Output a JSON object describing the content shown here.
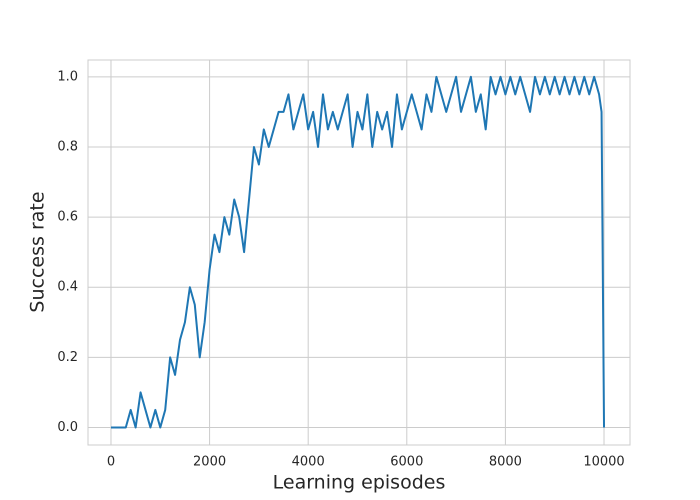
{
  "chart_data": {
    "type": "line",
    "x_label": "Learning episodes",
    "y_label": "Success rate",
    "xlim": [
      -466,
      10527
    ],
    "ylim": [
      -0.05,
      1.048
    ],
    "xticks": [
      0,
      2000,
      4000,
      6000,
      8000,
      10000
    ],
    "yticks": [
      {
        "value": 0,
        "label": "0.0"
      },
      {
        "value": 0.2,
        "label": "0.2"
      },
      {
        "value": 0.4,
        "label": "0.4"
      },
      {
        "value": 0.6,
        "label": "0.6"
      },
      {
        "value": 0.8,
        "label": "0.8"
      },
      {
        "value": 1.0,
        "label": "1.0"
      }
    ],
    "grid": true,
    "x": [
      0,
      100,
      200,
      300,
      400,
      500,
      600,
      700,
      800,
      900,
      1000,
      1100,
      1200,
      1300,
      1400,
      1500,
      1600,
      1700,
      1800,
      1900,
      2000,
      2100,
      2200,
      2300,
      2400,
      2500,
      2600,
      2700,
      2800,
      2900,
      3000,
      3100,
      3200,
      3300,
      3400,
      3500,
      3600,
      3700,
      3800,
      3900,
      4000,
      4100,
      4200,
      4300,
      4400,
      4500,
      4600,
      4700,
      4800,
      4900,
      5000,
      5100,
      5200,
      5300,
      5400,
      5500,
      5600,
      5700,
      5800,
      5900,
      6000,
      6100,
      6200,
      6300,
      6400,
      6500,
      6600,
      6700,
      6800,
      6900,
      7000,
      7100,
      7200,
      7300,
      7400,
      7500,
      7600,
      7700,
      7800,
      7900,
      8000,
      8100,
      8200,
      8300,
      8400,
      8500,
      8600,
      8700,
      8800,
      8900,
      9000,
      9100,
      9200,
      9300,
      9400,
      9500,
      9600,
      9700,
      9800,
      9900,
      9950,
      10000
    ],
    "series": [
      {
        "color": "#1f77b4",
        "values": [
          0,
          0,
          0,
          0,
          0.05,
          0,
          0.1,
          0.05,
          0,
          0.05,
          0,
          0.05,
          0.2,
          0.15,
          0.25,
          0.3,
          0.4,
          0.35,
          0.2,
          0.3,
          0.45,
          0.55,
          0.5,
          0.6,
          0.55,
          0.65,
          0.6,
          0.5,
          0.65,
          0.8,
          0.75,
          0.85,
          0.8,
          0.85,
          0.9,
          0.9,
          0.95,
          0.85,
          0.9,
          0.95,
          0.85,
          0.9,
          0.8,
          0.95,
          0.85,
          0.9,
          0.85,
          0.9,
          0.95,
          0.8,
          0.9,
          0.85,
          0.95,
          0.8,
          0.9,
          0.85,
          0.9,
          0.8,
          0.95,
          0.85,
          0.9,
          0.95,
          0.9,
          0.85,
          0.95,
          0.9,
          1.0,
          0.95,
          0.9,
          0.95,
          1.0,
          0.9,
          0.95,
          1.0,
          0.9,
          0.95,
          0.85,
          1.0,
          0.95,
          1.0,
          0.95,
          1.0,
          0.95,
          1.0,
          0.95,
          0.9,
          1.0,
          0.95,
          1.0,
          0.95,
          1.0,
          0.95,
          1.0,
          0.95,
          1.0,
          0.95,
          1.0,
          0.95,
          1.0,
          0.95,
          0.9,
          0
        ]
      }
    ]
  }
}
